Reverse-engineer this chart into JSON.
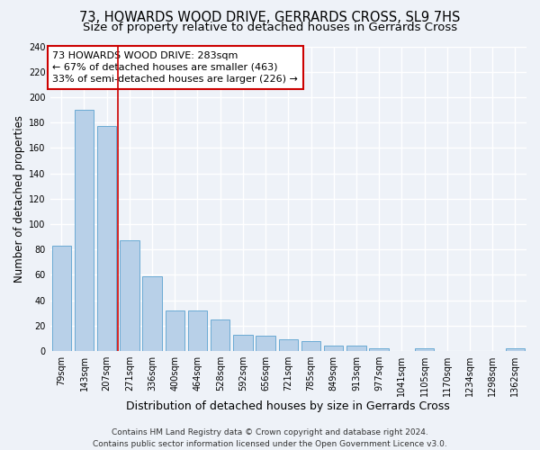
{
  "title": "73, HOWARDS WOOD DRIVE, GERRARDS CROSS, SL9 7HS",
  "subtitle": "Size of property relative to detached houses in Gerrards Cross",
  "xlabel": "Distribution of detached houses by size in Gerrards Cross",
  "ylabel": "Number of detached properties",
  "categories": [
    "79sqm",
    "143sqm",
    "207sqm",
    "271sqm",
    "336sqm",
    "400sqm",
    "464sqm",
    "528sqm",
    "592sqm",
    "656sqm",
    "721sqm",
    "785sqm",
    "849sqm",
    "913sqm",
    "977sqm",
    "1041sqm",
    "1105sqm",
    "1170sqm",
    "1234sqm",
    "1298sqm",
    "1362sqm"
  ],
  "values": [
    83,
    190,
    177,
    87,
    59,
    32,
    32,
    25,
    13,
    12,
    9,
    8,
    4,
    4,
    2,
    0,
    2,
    0,
    0,
    0,
    2
  ],
  "bar_color": "#b8d0e8",
  "bar_edge_color": "#6aaad4",
  "vline_x_index": 3,
  "vline_color": "#cc0000",
  "annotation_line1": "73 HOWARDS WOOD DRIVE: 283sqm",
  "annotation_line2": "← 67% of detached houses are smaller (463)",
  "annotation_line3": "33% of semi-detached houses are larger (226) →",
  "annotation_box_color": "#ffffff",
  "annotation_box_edge": "#cc0000",
  "ylim": [
    0,
    240
  ],
  "yticks": [
    0,
    20,
    40,
    60,
    80,
    100,
    120,
    140,
    160,
    180,
    200,
    220,
    240
  ],
  "bg_color": "#eef2f8",
  "grid_color": "#ffffff",
  "footer_line1": "Contains HM Land Registry data © Crown copyright and database right 2024.",
  "footer_line2": "Contains public sector information licensed under the Open Government Licence v3.0.",
  "title_fontsize": 10.5,
  "subtitle_fontsize": 9.5,
  "xlabel_fontsize": 9,
  "ylabel_fontsize": 8.5,
  "tick_fontsize": 7,
  "annotation_fontsize": 8,
  "footer_fontsize": 6.5
}
